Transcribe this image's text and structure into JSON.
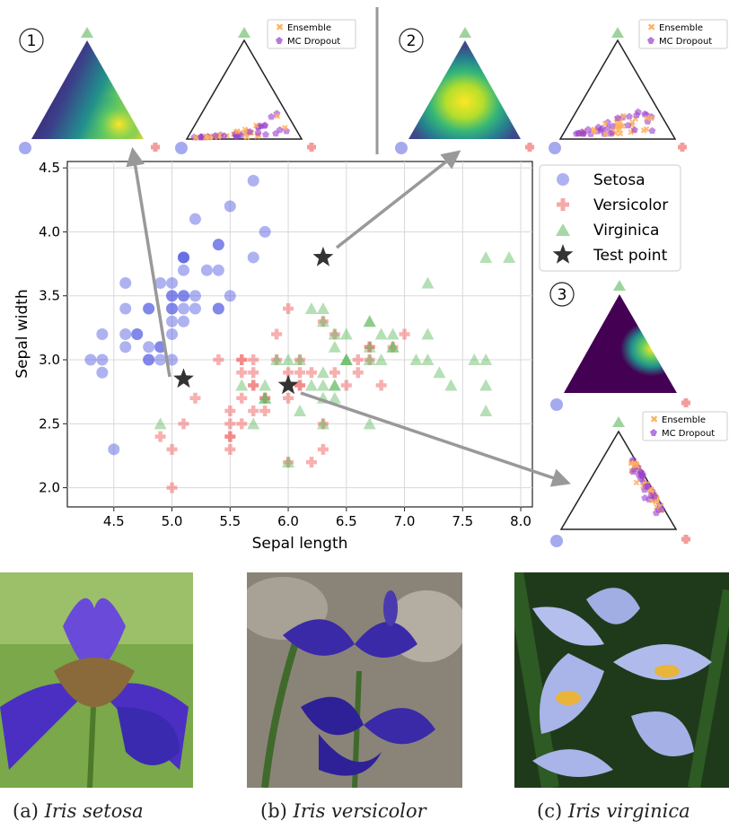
{
  "chart_data": [
    {
      "type": "scatter",
      "xlabel": "Sepal length",
      "ylabel": "Sepal width",
      "xlim": [
        4.1,
        8.1
      ],
      "ylim": [
        1.85,
        4.55
      ],
      "xticks": [
        "4.5",
        "5.0",
        "5.5",
        "6.0",
        "6.5",
        "7.0",
        "7.5",
        "8.0"
      ],
      "yticks": [
        "2.0",
        "2.5",
        "3.0",
        "3.5",
        "4.0",
        "4.5"
      ],
      "grid": true,
      "legend_position": "right",
      "series": [
        {
          "name": "Setosa",
          "marker": "circle",
          "color": "#4b55e0",
          "points": [
            [
              5.1,
              3.5
            ],
            [
              4.9,
              3.0
            ],
            [
              4.7,
              3.2
            ],
            [
              4.6,
              3.1
            ],
            [
              5.0,
              3.6
            ],
            [
              5.4,
              3.9
            ],
            [
              4.6,
              3.4
            ],
            [
              5.0,
              3.4
            ],
            [
              4.4,
              2.9
            ],
            [
              4.9,
              3.1
            ],
            [
              5.4,
              3.7
            ],
            [
              4.8,
              3.4
            ],
            [
              4.8,
              3.0
            ],
            [
              4.3,
              3.0
            ],
            [
              5.8,
              4.0
            ],
            [
              5.7,
              4.4
            ],
            [
              5.4,
              3.9
            ],
            [
              5.1,
              3.5
            ],
            [
              5.7,
              3.8
            ],
            [
              5.1,
              3.8
            ],
            [
              5.4,
              3.4
            ],
            [
              5.1,
              3.7
            ],
            [
              4.6,
              3.6
            ],
            [
              5.1,
              3.3
            ],
            [
              4.8,
              3.4
            ],
            [
              5.0,
              3.0
            ],
            [
              5.0,
              3.4
            ],
            [
              5.2,
              3.5
            ],
            [
              5.2,
              3.4
            ],
            [
              4.7,
              3.2
            ],
            [
              4.8,
              3.1
            ],
            [
              5.4,
              3.4
            ],
            [
              5.2,
              4.1
            ],
            [
              5.5,
              4.2
            ],
            [
              4.9,
              3.1
            ],
            [
              5.0,
              3.2
            ],
            [
              5.5,
              3.5
            ],
            [
              4.9,
              3.6
            ],
            [
              4.4,
              3.0
            ],
            [
              5.1,
              3.4
            ],
            [
              5.0,
              3.5
            ],
            [
              4.5,
              2.3
            ],
            [
              4.4,
              3.2
            ],
            [
              5.0,
              3.5
            ],
            [
              5.1,
              3.8
            ],
            [
              4.8,
              3.0
            ],
            [
              5.1,
              3.8
            ],
            [
              4.6,
              3.2
            ],
            [
              5.3,
              3.7
            ],
            [
              5.0,
              3.3
            ]
          ]
        },
        {
          "name": "Versicolor",
          "marker": "plus",
          "color": "#f07070",
          "points": [
            [
              7.0,
              3.2
            ],
            [
              6.4,
              3.2
            ],
            [
              6.9,
              3.1
            ],
            [
              5.5,
              2.3
            ],
            [
              6.5,
              2.8
            ],
            [
              5.7,
              2.8
            ],
            [
              6.3,
              3.3
            ],
            [
              4.9,
              2.4
            ],
            [
              6.6,
              2.9
            ],
            [
              5.2,
              2.7
            ],
            [
              5.0,
              2.0
            ],
            [
              5.9,
              3.0
            ],
            [
              6.0,
              2.2
            ],
            [
              6.1,
              2.9
            ],
            [
              5.6,
              2.9
            ],
            [
              6.7,
              3.1
            ],
            [
              5.6,
              3.0
            ],
            [
              5.8,
              2.7
            ],
            [
              6.2,
              2.2
            ],
            [
              5.6,
              2.5
            ],
            [
              5.9,
              3.2
            ],
            [
              6.1,
              2.8
            ],
            [
              6.3,
              2.5
            ],
            [
              6.1,
              2.8
            ],
            [
              6.4,
              2.9
            ],
            [
              6.6,
              3.0
            ],
            [
              6.8,
              2.8
            ],
            [
              6.7,
              3.0
            ],
            [
              6.0,
              2.9
            ],
            [
              5.7,
              2.6
            ],
            [
              5.5,
              2.4
            ],
            [
              5.5,
              2.4
            ],
            [
              5.8,
              2.7
            ],
            [
              6.0,
              2.7
            ],
            [
              5.4,
              3.0
            ],
            [
              6.0,
              3.4
            ],
            [
              6.7,
              3.1
            ],
            [
              6.3,
              2.3
            ],
            [
              5.6,
              3.0
            ],
            [
              5.5,
              2.5
            ],
            [
              5.5,
              2.6
            ],
            [
              6.1,
              3.0
            ],
            [
              5.8,
              2.6
            ],
            [
              5.0,
              2.3
            ],
            [
              5.6,
              2.7
            ],
            [
              5.7,
              3.0
            ],
            [
              5.7,
              2.9
            ],
            [
              6.2,
              2.9
            ],
            [
              5.1,
              2.5
            ],
            [
              5.7,
              2.8
            ]
          ]
        },
        {
          "name": "Virginica",
          "marker": "triangle",
          "color": "#5cb85c",
          "points": [
            [
              6.3,
              3.3
            ],
            [
              5.8,
              2.7
            ],
            [
              7.1,
              3.0
            ],
            [
              6.3,
              2.9
            ],
            [
              6.5,
              3.0
            ],
            [
              7.6,
              3.0
            ],
            [
              4.9,
              2.5
            ],
            [
              7.3,
              2.9
            ],
            [
              6.7,
              2.5
            ],
            [
              7.2,
              3.6
            ],
            [
              6.5,
              3.2
            ],
            [
              6.4,
              2.7
            ],
            [
              6.8,
              3.0
            ],
            [
              5.7,
              2.5
            ],
            [
              5.8,
              2.8
            ],
            [
              6.4,
              3.2
            ],
            [
              6.5,
              3.0
            ],
            [
              7.7,
              3.8
            ],
            [
              7.7,
              2.6
            ],
            [
              6.0,
              2.2
            ],
            [
              6.9,
              3.2
            ],
            [
              5.6,
              2.8
            ],
            [
              7.7,
              2.8
            ],
            [
              6.3,
              2.7
            ],
            [
              6.7,
              3.3
            ],
            [
              7.2,
              3.2
            ],
            [
              6.2,
              2.8
            ],
            [
              6.1,
              3.0
            ],
            [
              6.4,
              2.8
            ],
            [
              7.2,
              3.0
            ],
            [
              7.4,
              2.8
            ],
            [
              7.9,
              3.8
            ],
            [
              6.4,
              2.8
            ],
            [
              6.3,
              2.8
            ],
            [
              6.1,
              2.6
            ],
            [
              7.7,
              3.0
            ],
            [
              6.3,
              3.4
            ],
            [
              6.4,
              3.1
            ],
            [
              6.0,
              3.0
            ],
            [
              6.9,
              3.1
            ],
            [
              6.7,
              3.1
            ],
            [
              6.9,
              3.1
            ],
            [
              5.8,
              2.7
            ],
            [
              6.8,
              3.2
            ],
            [
              6.7,
              3.3
            ],
            [
              6.7,
              3.0
            ],
            [
              6.3,
              2.5
            ],
            [
              6.5,
              3.0
            ],
            [
              6.2,
              3.4
            ],
            [
              5.9,
              3.0
            ]
          ]
        },
        {
          "name": "Test point",
          "marker": "star",
          "color": "#333333",
          "points": [
            [
              5.1,
              2.85
            ],
            [
              6.3,
              3.8
            ],
            [
              6.0,
              2.8
            ]
          ]
        }
      ]
    },
    {
      "type": "ternary-density",
      "panel": "1",
      "mode": "peak-near-corner",
      "corners": [
        "Setosa",
        "Versicolor",
        "Virginica"
      ]
    },
    {
      "type": "ternary-scatter",
      "panel": "1",
      "legend": [
        "Ensemble",
        "MC Dropout"
      ],
      "pattern": "bottom-edge"
    },
    {
      "type": "ternary-density",
      "panel": "2",
      "mode": "peak-center",
      "corners": [
        "Setosa",
        "Versicolor",
        "Virginica"
      ]
    },
    {
      "type": "ternary-scatter",
      "panel": "2",
      "legend": [
        "Ensemble",
        "MC Dropout"
      ],
      "pattern": "spread"
    },
    {
      "type": "ternary-density",
      "panel": "3",
      "mode": "peak-right-edge",
      "corners": [
        "Setosa",
        "Versicolor",
        "Virginica"
      ]
    },
    {
      "type": "ternary-scatter",
      "panel": "3",
      "legend": [
        "Ensemble",
        "MC Dropout"
      ],
      "pattern": "right-edge"
    }
  ],
  "panel_numbers": [
    "1",
    "2",
    "3"
  ],
  "legend_small": {
    "ensemble": "Ensemble",
    "mc_dropout": "MC Dropout"
  },
  "captions": [
    {
      "letter": "(a)",
      "species": "Iris setosa"
    },
    {
      "letter": "(b)",
      "species": "Iris versicolor"
    },
    {
      "letter": "(c)",
      "species": "Iris virginica"
    }
  ],
  "colors": {
    "setosa": "#4b55e0",
    "versicolor": "#f07070",
    "virginica": "#5cb85c",
    "test_point": "#333333",
    "ensemble": "#ffb060",
    "mc_dropout": "#9b3fd0",
    "arrow": "#999999"
  }
}
